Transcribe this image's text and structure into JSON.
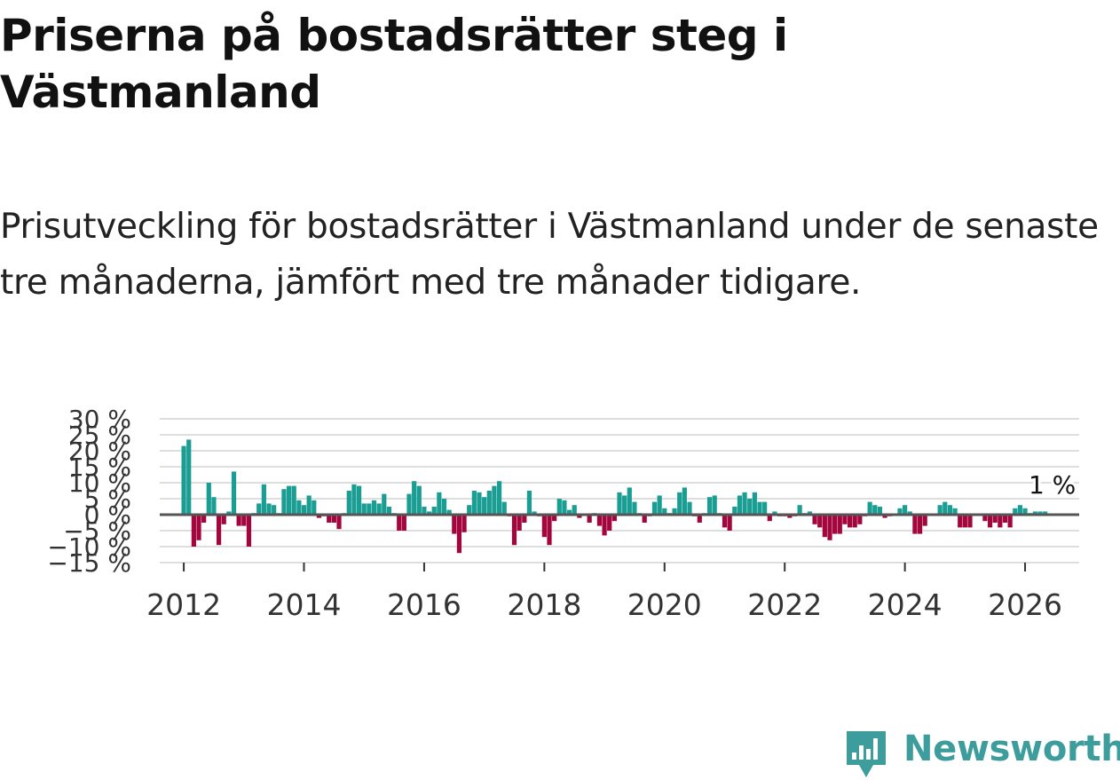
{
  "header": {
    "title": "Priserna på bostadsrätter steg i Västmanland",
    "subtitle": "Prisutveckling för bostadsrätter i Västmanland under de senaste tre månaderna, jämfört med tre månader tidigare."
  },
  "brand": {
    "name": "Newsworthy",
    "icon": "newsworthy-logo-icon"
  },
  "colors": {
    "positive": "#1a9e94",
    "negative": "#a3053d",
    "grid": "#dedede",
    "zero": "#555555"
  },
  "chart_data": {
    "type": "bar",
    "title": "Priserna på bostadsrätter steg i Västmanland",
    "xlabel": "",
    "ylabel": "",
    "ylim": [
      -15,
      30
    ],
    "xlim": [
      2011.6,
      2026.9
    ],
    "yticks": [
      -15,
      -10,
      -5,
      0,
      5,
      10,
      15,
      20,
      25,
      30
    ],
    "ytick_labels": [
      "−15 %",
      "−10 %",
      "−5 %",
      "0 %",
      "5 %",
      "10 %",
      "15 %",
      "20 %",
      "25 %",
      "30 %"
    ],
    "xticks": [
      2012,
      2014,
      2016,
      2018,
      2020,
      2022,
      2024,
      2026
    ],
    "xtick_labels": [
      "2012",
      "2014",
      "2016",
      "2018",
      "2020",
      "2022",
      "2024",
      "2026"
    ],
    "series": [
      {
        "name": "Prisutveckling",
        "x_start": 2012.0,
        "x_step": 0.0833333,
        "values": [
          21.5,
          23.5,
          -10,
          -8,
          -2.5,
          10,
          5.5,
          -9.5,
          -3,
          1,
          13.5,
          -3.5,
          -3.5,
          -10,
          0.5,
          3.5,
          9.5,
          3.5,
          3,
          0.5,
          8,
          9,
          9,
          4.5,
          3,
          6,
          4.5,
          -1,
          -0.5,
          -2.5,
          -2.5,
          -4.5,
          0.5,
          7.5,
          9.5,
          9,
          3.5,
          3.5,
          4.5,
          3.5,
          6.5,
          2.5,
          0.5,
          -5,
          -5,
          6.5,
          10.5,
          9,
          2.5,
          1,
          2.5,
          7,
          5,
          1.5,
          -6,
          -12,
          -5.5,
          3,
          7.5,
          7,
          5.5,
          7.5,
          9,
          10.5,
          4,
          -0.5,
          -9.5,
          -5,
          -2.5,
          7.5,
          1,
          -0.5,
          -7,
          -9.5,
          -2,
          5,
          4.5,
          1.5,
          3,
          -1,
          0,
          -2.5,
          0.5,
          -3.5,
          -6.5,
          -5,
          -2,
          7,
          6,
          8.5,
          4,
          0.5,
          -2.5,
          -0.5,
          4,
          6,
          2,
          0.5,
          2,
          7,
          8.5,
          4,
          -0.5,
          -2.5,
          0.5,
          5.5,
          6,
          0.5,
          -4,
          -5,
          2.5,
          6,
          7,
          5,
          7,
          4,
          4,
          -2,
          1,
          -0.5,
          -0.5,
          -1,
          -0.5,
          3,
          0.5,
          1,
          -3,
          -4,
          -7,
          -8,
          -6,
          -6,
          -3,
          -4,
          -4,
          -3,
          -0.5,
          4,
          3,
          2.5,
          -1,
          -0.5,
          0,
          2,
          3,
          1,
          -6,
          -6,
          -3.5,
          0,
          0,
          3,
          4,
          3,
          2,
          -4,
          -4,
          -4,
          0,
          0,
          -2,
          -4,
          -2.5,
          -4,
          -2.5,
          -4,
          2,
          3,
          2,
          0.5,
          1,
          1,
          1
        ]
      }
    ],
    "annotation": {
      "text": "1 %",
      "target": "last"
    }
  }
}
